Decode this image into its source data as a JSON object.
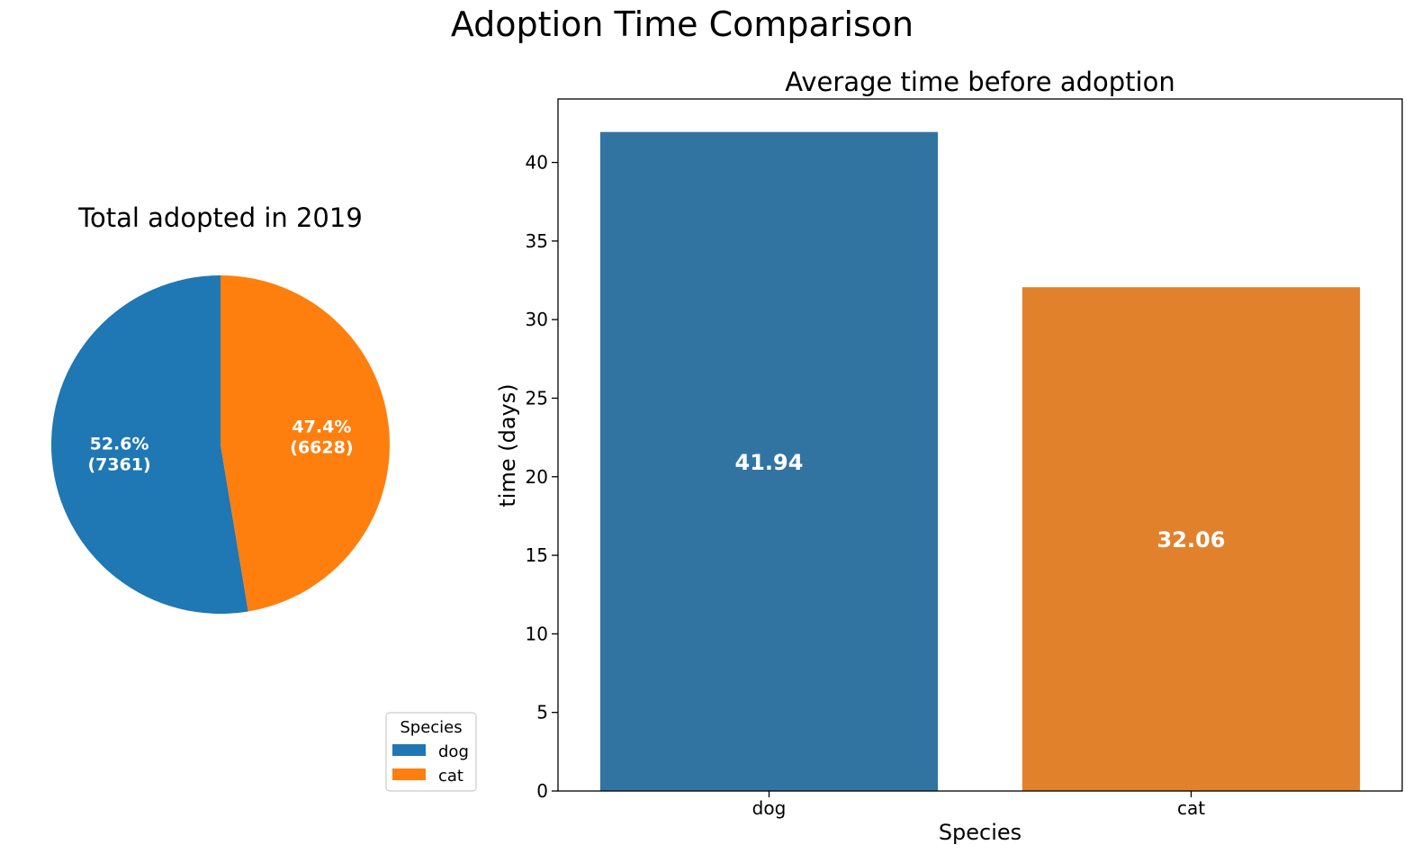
{
  "figure": {
    "title": "Adoption Time Comparison"
  },
  "chart_data": [
    {
      "type": "pie",
      "title": "Total adopted in 2019",
      "slices": [
        {
          "label": "dog",
          "value": 7361,
          "percent_label": "52.6%",
          "count_label": "(7361)",
          "color": "#1f77b4"
        },
        {
          "label": "cat",
          "value": 6628,
          "percent_label": "47.4%",
          "count_label": "(6628)",
          "color": "#ff7f0e"
        }
      ],
      "start_angle_deg": 90,
      "direction": "counterclockwise",
      "legend": {
        "title": "Species",
        "placement": "lower-right",
        "entries": [
          {
            "label": "dog",
            "color": "#1f77b4"
          },
          {
            "label": "cat",
            "color": "#ff7f0e"
          }
        ]
      }
    },
    {
      "type": "bar",
      "title": "Average time before adoption",
      "categories": [
        "dog",
        "cat"
      ],
      "values": [
        41.94,
        32.06
      ],
      "value_labels": [
        "41.94",
        "32.06"
      ],
      "colors": [
        "#3274a1",
        "#e1812c"
      ],
      "xlabel": "Species",
      "ylabel": "time (days)",
      "ylim": [
        0,
        44.04
      ],
      "yticks": [
        0,
        5,
        10,
        15,
        20,
        25,
        30,
        35,
        40
      ],
      "grid": false
    }
  ]
}
